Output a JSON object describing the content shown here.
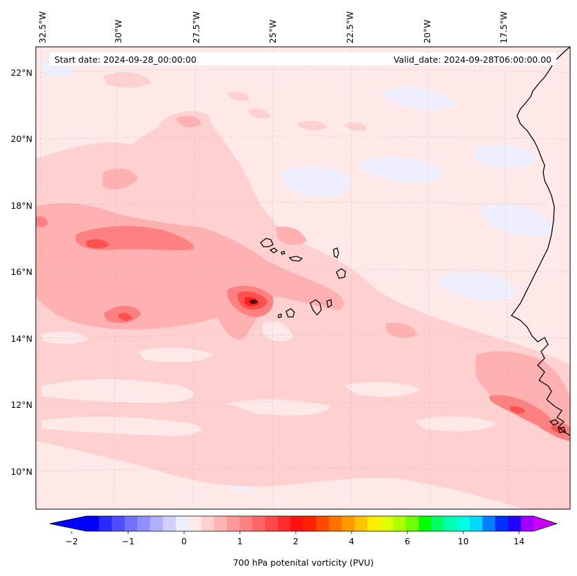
{
  "map": {
    "start_date": "Start date: 2024-09-28_00:00:00",
    "valid_date": "Valid_date: 2024-09-28T06:00:00.00",
    "lon_labels": [
      "32.5°W",
      "30°W",
      "27.5°W",
      "25°W",
      "22.5°W",
      "20°W",
      "17.5°W"
    ],
    "lat_labels": [
      "22°N",
      "20°N",
      "18°N",
      "16°N",
      "14°N",
      "12°N",
      "10°N"
    ]
  },
  "colorbar": {
    "label": "700 hPa potenital vorticity (PVU)",
    "ticks": [
      "−2",
      "−1",
      "0",
      "1",
      "2",
      "4",
      "6",
      "10",
      "14"
    ],
    "colors": [
      "#0000ff",
      "#2a2aff",
      "#4e4eff",
      "#7272ff",
      "#9090ff",
      "#b0b0ff",
      "#d0d0ff",
      "#eeeeff",
      "#ffe8e8",
      "#ffd0d0",
      "#ffb4b4",
      "#ff9a9a",
      "#ff8080",
      "#ff6464",
      "#ff4848",
      "#ff2c2c",
      "#ff1010",
      "#ff2200",
      "#ff4a00",
      "#ff7200",
      "#ff9900",
      "#ffc400",
      "#ffee00",
      "#e0ff00",
      "#b0ff00",
      "#70ff00",
      "#00ff00",
      "#00ff66",
      "#00ffb0",
      "#00ffe0",
      "#00d8ff",
      "#0080ff",
      "#0030ff",
      "#2000ff",
      "#a000ff"
    ],
    "under_color": "#0000ff",
    "over_color": "#cc00ff"
  },
  "colors": {
    "background": "#ffe8e8",
    "light_blue": "#eeeeff",
    "pink": "#ffd0d0",
    "pink_mid": "#ffb0b0",
    "red_mid": "#ff8080",
    "red_strong": "#ff5050",
    "coast": "#000000"
  }
}
